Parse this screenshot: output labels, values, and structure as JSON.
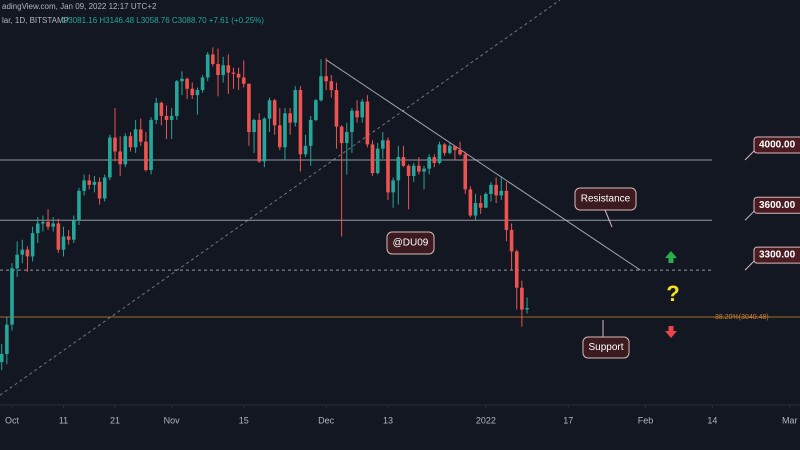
{
  "chart_data": {
    "type": "candlestick",
    "header": {
      "source": "adingView.com, Jan 09, 2022 12:17 UTC+2",
      "symbol": "lar, 1D, BITSTAMP",
      "ohlc": "O3081.16 H3146.48 L3058.76 C3088.70 +7.61 (+0.25%)"
    },
    "log": true,
    "grid": false,
    "up_color": "#26a69a",
    "down_color": "#ef5350",
    "xlim": [
      -2.33,
      153
    ],
    "ylim": [
      2630,
      5290
    ],
    "xticks": [
      {
        "value": 0,
        "label": "Oct"
      },
      {
        "value": 10,
        "label": "11"
      },
      {
        "value": 20,
        "label": "21"
      },
      {
        "value": 31,
        "label": "Nov"
      },
      {
        "value": 45,
        "label": "15"
      },
      {
        "value": 61,
        "label": "Dec"
      },
      {
        "value": 73,
        "label": "13"
      },
      {
        "value": 92,
        "label": "2022"
      },
      {
        "value": 108,
        "label": "17"
      },
      {
        "value": 123,
        "label": "Feb"
      },
      {
        "value": 136,
        "label": "14"
      },
      {
        "value": 151,
        "label": "Mar"
      }
    ],
    "x": [
      -2,
      -1,
      0,
      1,
      2,
      3,
      4,
      5,
      6,
      7,
      8,
      9,
      10,
      11,
      12,
      13,
      14,
      15,
      16,
      17,
      18,
      19,
      20,
      21,
      22,
      23,
      24,
      25,
      26,
      27,
      28,
      29,
      30,
      31,
      32,
      33,
      34,
      35,
      36,
      37,
      38,
      39,
      40,
      41,
      42,
      43,
      44,
      45,
      46,
      47,
      48,
      49,
      50,
      51,
      52,
      53,
      54,
      55,
      56,
      57,
      58,
      59,
      60,
      61,
      62,
      63,
      64,
      65,
      66,
      67,
      68,
      69,
      70,
      71,
      72,
      73,
      74,
      75,
      76,
      77,
      78,
      79,
      80,
      81,
      82,
      83,
      84,
      85,
      86,
      87,
      88,
      89,
      90,
      91,
      92,
      93,
      94,
      95,
      96,
      97,
      98,
      99,
      100
    ],
    "open": [
      2810,
      2850,
      3000,
      3310,
      3390,
      3420,
      3380,
      3520,
      3580,
      3590,
      3560,
      3580,
      3420,
      3500,
      3480,
      3600,
      3790,
      3860,
      3830,
      3850,
      3740,
      3880,
      4160,
      4060,
      3970,
      4170,
      4090,
      4220,
      4130,
      3930,
      4290,
      4420,
      4320,
      4290,
      4320,
      4590,
      4610,
      4530,
      4480,
      4520,
      4620,
      4810,
      4730,
      4640,
      4720,
      4660,
      4650,
      4620,
      4570,
      4200,
      4290,
      3990,
      4300,
      4440,
      4250,
      4090,
      4340,
      4270,
      4520,
      4040,
      4100,
      4290,
      4440,
      4630,
      4590,
      4520,
      4240,
      4120,
      4200,
      4360,
      4310,
      4430,
      4110,
      3910,
      4080,
      4140,
      3780,
      3860,
      4020,
      3960,
      3890,
      3960,
      3920,
      3940,
      4020,
      3980,
      4110,
      4050,
      4100,
      4070,
      4040,
      3800,
      3630,
      3710,
      3680,
      3770,
      3830,
      3760,
      3790,
      3540,
      3410,
      3200,
      3081.16
    ],
    "high": [
      2900,
      3040,
      3340,
      3470,
      3480,
      3440,
      3560,
      3620,
      3630,
      3670,
      3620,
      3610,
      3560,
      3540,
      3630,
      3810,
      3900,
      3900,
      3890,
      3880,
      3900,
      4180,
      4380,
      4170,
      4190,
      4200,
      4290,
      4300,
      4200,
      4310,
      4460,
      4430,
      4400,
      4380,
      4600,
      4670,
      4620,
      4580,
      4540,
      4640,
      4830,
      4870,
      4860,
      4790,
      4810,
      4700,
      4700,
      4760,
      4570,
      4300,
      4340,
      4310,
      4460,
      4450,
      4380,
      4380,
      4380,
      4550,
      4550,
      4180,
      4320,
      4450,
      4770,
      4780,
      4640,
      4580,
      4250,
      4270,
      4380,
      4440,
      4450,
      4480,
      4140,
      4120,
      4200,
      4160,
      3880,
      4100,
      4100,
      3970,
      3980,
      4020,
      3960,
      4040,
      4040,
      4130,
      4120,
      4120,
      4100,
      4130,
      4060,
      3820,
      3770,
      3760,
      3780,
      3850,
      3880,
      3890,
      3850,
      3580,
      3420,
      3240,
      3146.48
    ],
    "low": [
      2770,
      2800,
      2970,
      3260,
      3340,
      3290,
      3350,
      3460,
      3530,
      3540,
      3530,
      3400,
      3380,
      3450,
      3460,
      3570,
      3760,
      3800,
      3780,
      3700,
      3720,
      3860,
      3990,
      3890,
      3950,
      4060,
      4050,
      4100,
      3920,
      3900,
      4260,
      4250,
      4150,
      4150,
      4290,
      4480,
      4450,
      4450,
      4330,
      4500,
      4590,
      4710,
      4470,
      4580,
      4490,
      4530,
      4520,
      4540,
      4100,
      4050,
      3980,
      3950,
      4200,
      4180,
      4070,
      4000,
      4180,
      4240,
      3920,
      4020,
      3960,
      4280,
      4430,
      4520,
      4460,
      4080,
      3500,
      3900,
      4050,
      4270,
      4270,
      4090,
      3890,
      3900,
      4010,
      3730,
      3680,
      3700,
      3950,
      3670,
      3850,
      3900,
      3800,
      3900,
      3950,
      3970,
      4030,
      4040,
      4000,
      4030,
      3770,
      3620,
      3600,
      3640,
      3680,
      3720,
      3710,
      3730,
      3470,
      3300,
      3080,
      2990,
      3058.76
    ],
    "close": [
      2850,
      3000,
      3310,
      3390,
      3420,
      3380,
      3520,
      3580,
      3590,
      3560,
      3580,
      3420,
      3500,
      3480,
      3600,
      3790,
      3860,
      3830,
      3850,
      3740,
      3880,
      4160,
      4060,
      3970,
      4170,
      4090,
      4220,
      4130,
      3930,
      4290,
      4420,
      4320,
      4290,
      4320,
      4590,
      4610,
      4530,
      4480,
      4520,
      4620,
      4810,
      4730,
      4640,
      4720,
      4660,
      4650,
      4620,
      4570,
      4200,
      4290,
      3990,
      4300,
      4440,
      4250,
      4090,
      4340,
      4270,
      4520,
      4040,
      4100,
      4290,
      4440,
      4630,
      4590,
      4520,
      4240,
      4120,
      4200,
      4360,
      4310,
      4430,
      4110,
      3910,
      4080,
      4140,
      3780,
      3860,
      4020,
      3960,
      3890,
      3960,
      3920,
      3940,
      4020,
      3980,
      4110,
      4050,
      4100,
      4070,
      4040,
      3800,
      3630,
      3710,
      3680,
      3770,
      3830,
      3760,
      3790,
      3540,
      3410,
      3200,
      3080,
      3088.7
    ],
    "levels": [
      {
        "value": 4000,
        "label": "4000.00",
        "dashed": false
      },
      {
        "value": 3600,
        "label": "3600.00",
        "dashed": false
      },
      {
        "value": 3300,
        "label": "3300.00",
        "dashed": true
      }
    ],
    "fib_level": {
      "value": 3040.48,
      "label": "38.20%(3040.48)",
      "color": "#c8822a"
    },
    "trendlines": [
      {
        "x": [
          61,
          122
        ],
        "y": [
          4765,
          3300
        ],
        "dashed": false
      },
      {
        "x": [
          -2.33,
          106.4
        ],
        "y": [
          2652,
          5290
        ],
        "dashed": true
      }
    ],
    "annotations": {
      "resistance": "Resistance",
      "support": "Support",
      "watermark": "@DU09",
      "question": "?"
    }
  }
}
